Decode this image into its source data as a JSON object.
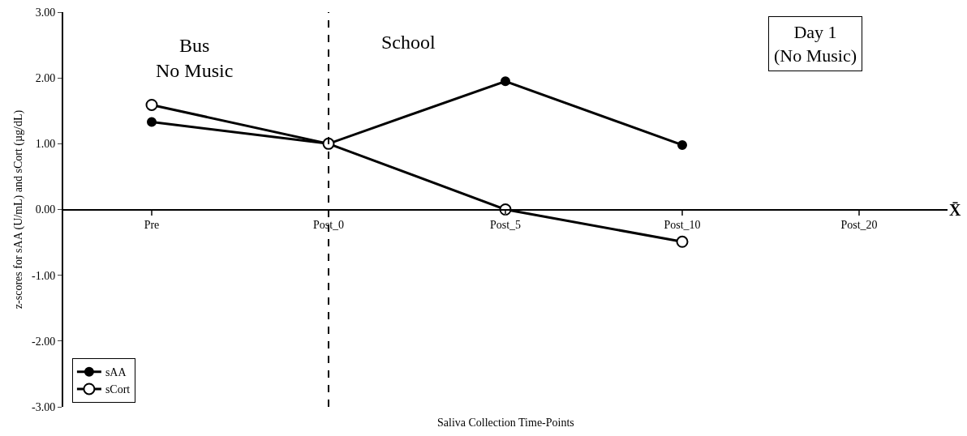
{
  "chart_data": {
    "type": "line",
    "xlabel": "Saliva Collection Time-Points",
    "ylabel": "z-scores for sAA (U/mL) and sCort (µg/dL)",
    "categories": [
      "Pre",
      "Post_0",
      "Post_5",
      "Post_10",
      "Post_20"
    ],
    "series": [
      {
        "name": "sAA",
        "color": "#000000",
        "values": [
          1.33,
          1.0,
          1.95,
          0.98,
          null
        ]
      },
      {
        "name": "sCort",
        "color": "#000000",
        "values": [
          1.59,
          1.0,
          0.0,
          -0.49,
          null
        ]
      }
    ],
    "ylim": [
      -3,
      3
    ],
    "yticks": [
      {
        "value": -3,
        "label": "-3.00"
      },
      {
        "value": -2,
        "label": "-2.00"
      },
      {
        "value": -1,
        "label": "-1.00"
      },
      {
        "value": 0,
        "label": "0.00"
      },
      {
        "value": 1,
        "label": "1.00"
      },
      {
        "value": 2,
        "label": "2.00"
      },
      {
        "value": 3,
        "label": "3.00"
      }
    ],
    "ref_lines": [
      {
        "axis": "x",
        "value": "Post_0",
        "line_style": "dashed",
        "color": "#000000"
      }
    ],
    "annotations": [
      "Bus\nNo Music",
      "School",
      "Day 1\n(No Music)",
      "X̄"
    ],
    "grid": false,
    "legend": "bottom left",
    "marker": "circle",
    "line_style": "solid"
  }
}
